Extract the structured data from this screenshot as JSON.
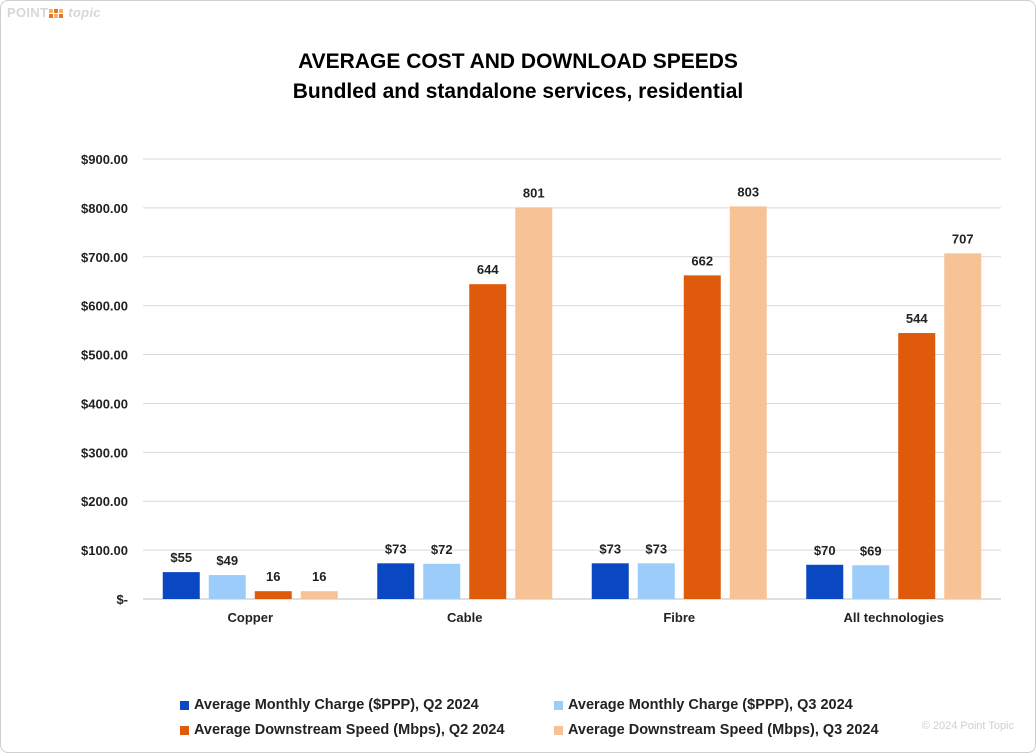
{
  "logo": {
    "left": "POINT",
    "right": "topic"
  },
  "copyright": "© 2024 Point Topic",
  "chart_data": {
    "type": "bar",
    "title": "AVERAGE COST AND DOWNLOAD SPEEDS",
    "subtitle": "Bundled and standalone services, residential",
    "categories": [
      "Copper",
      "Cable",
      "Fibre",
      "All technologies"
    ],
    "ylim": [
      0,
      900
    ],
    "yticks": [
      0,
      100,
      200,
      300,
      400,
      500,
      600,
      700,
      800,
      900
    ],
    "ytick_labels": [
      "$-",
      "$100.00",
      "$200.00",
      "$300.00",
      "$400.00",
      "$500.00",
      "$600.00",
      "$700.00",
      "$800.00",
      "$900.00"
    ],
    "grid": true,
    "legend_position": "bottom",
    "series": [
      {
        "name": "Average Monthly Charge ($PPP), Q2 2024",
        "color": "#0a47c2",
        "values": [
          55,
          73,
          73,
          70
        ],
        "labels": [
          "$55",
          "$73",
          "$73",
          "$70"
        ]
      },
      {
        "name": "Average Monthly Charge ($PPP), Q3 2024",
        "color": "#9ccdfa",
        "values": [
          49,
          72,
          73,
          69
        ],
        "labels": [
          "$49",
          "$72",
          "$73",
          "$69"
        ]
      },
      {
        "name": "Average Downstream Speed (Mbps), Q2 2024",
        "color": "#df5a0a",
        "values": [
          16,
          644,
          662,
          544
        ],
        "labels": [
          "16",
          "644",
          "662",
          "544"
        ]
      },
      {
        "name": "Average Downstream Speed (Mbps), Q3 2024",
        "color": "#f7c396",
        "values": [
          16,
          801,
          803,
          707
        ],
        "labels": [
          "16",
          "801",
          "803",
          "707"
        ]
      }
    ]
  }
}
